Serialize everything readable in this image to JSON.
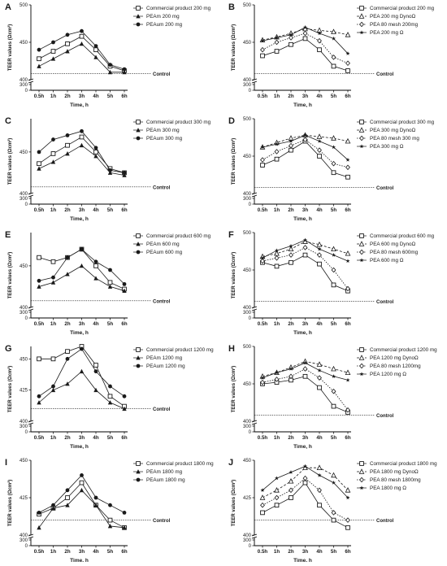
{
  "colors": {
    "ink": "#1a1a1a",
    "axis": "#000000"
  },
  "chart_data": [
    {
      "id": "A",
      "panel_label": "A",
      "type": "line",
      "ylabel": "TEER values (Ωcm²)",
      "xlabel": "Time, h",
      "control_label": "Control",
      "categories": [
        "0.5h",
        "1h",
        "2h",
        "3h",
        "4h",
        "5h",
        "6h"
      ],
      "yticks": [
        500,
        450,
        400,
        300,
        0
      ],
      "control": 408,
      "series": [
        {
          "name": "Commercial product 200 mg",
          "marker": "open-square",
          "values": [
            428,
            438,
            448,
            458,
            440,
            418,
            412
          ]
        },
        {
          "name": "PEAm 200 mg",
          "marker": "filled-triangle",
          "values": [
            418,
            428,
            438,
            448,
            430,
            410,
            410
          ]
        },
        {
          "name": "PEAum 200 mg",
          "marker": "filled-circle",
          "values": [
            440,
            450,
            460,
            465,
            445,
            420,
            414
          ]
        }
      ]
    },
    {
      "id": "B",
      "panel_label": "B",
      "type": "line",
      "ylabel": "TEER values (Ωcm²)",
      "xlabel": "Time, h",
      "control_label": "Control",
      "categories": [
        "0.5h",
        "1h",
        "2h",
        "3h",
        "4h",
        "5h",
        "6h"
      ],
      "yticks": [
        500,
        450,
        400,
        300,
        0
      ],
      "control": 408,
      "series": [
        {
          "name": "Commercial product 200 mg",
          "marker": "open-square",
          "values": [
            432,
            438,
            447,
            455,
            440,
            418,
            412
          ]
        },
        {
          "name": "PEA 200 mg DynoΩ",
          "marker": "open-triangle",
          "values": [
            453,
            457,
            462,
            468,
            466,
            464,
            460
          ]
        },
        {
          "name": "PEA 80 mesh 200mg",
          "marker": "open-diamond",
          "values": [
            440,
            450,
            456,
            462,
            452,
            430,
            422
          ]
        },
        {
          "name": "PEA 200 mg Ω",
          "marker": "star",
          "values": [
            452,
            456,
            460,
            470,
            462,
            455,
            435
          ]
        }
      ]
    },
    {
      "id": "C",
      "panel_label": "C",
      "type": "line",
      "ylabel": "TEER values (Ωcm²)",
      "xlabel": "Time, h",
      "control_label": "Control",
      "categories": [
        "0.5h",
        "1h",
        "2h",
        "3h",
        "4h",
        "5h",
        "6h"
      ],
      "yticks": [
        450,
        400,
        300,
        0
      ],
      "control": 408,
      "series": [
        {
          "name": "Commercial product 300 mg",
          "marker": "open-square",
          "values": [
            436,
            448,
            458,
            468,
            450,
            430,
            425
          ]
        },
        {
          "name": "PEAm 300 mg",
          "marker": "filled-triangle",
          "values": [
            430,
            438,
            448,
            458,
            445,
            425,
            422
          ]
        },
        {
          "name": "PEAum 300 mg",
          "marker": "filled-circle",
          "values": [
            450,
            465,
            470,
            475,
            455,
            428,
            425
          ]
        }
      ]
    },
    {
      "id": "D",
      "panel_label": "D",
      "type": "line",
      "ylabel": "TEER values (Ωcm²)",
      "xlabel": "Time, h",
      "control_label": "Control",
      "categories": [
        "0.5h",
        "1h",
        "2h",
        "3h",
        "4h",
        "5h",
        "6h"
      ],
      "yticks": [
        500,
        450,
        400,
        300,
        0
      ],
      "control": 408,
      "series": [
        {
          "name": "Commercial product 300 mg",
          "marker": "open-square",
          "values": [
            438,
            446,
            458,
            470,
            450,
            428,
            422
          ]
        },
        {
          "name": "PEA 300 mg DynoΩ",
          "marker": "open-triangle",
          "values": [
            462,
            468,
            474,
            478,
            476,
            474,
            470
          ]
        },
        {
          "name": "PEA 80 mesh 300 mg",
          "marker": "open-diamond",
          "values": [
            445,
            456,
            464,
            472,
            458,
            440,
            435
          ]
        },
        {
          "name": "PEA 300 mg Ω",
          "marker": "star",
          "values": [
            462,
            466,
            470,
            478,
            470,
            462,
            445
          ]
        }
      ]
    },
    {
      "id": "E",
      "panel_label": "E",
      "type": "line",
      "ylabel": "TEER values (Ωcm²)",
      "xlabel": "Time, h",
      "control_label": "Control",
      "categories": [
        "0.5h",
        "1h",
        "2h",
        "3h",
        "4h",
        "5h",
        "6h"
      ],
      "yticks": [
        450,
        400,
        300,
        0
      ],
      "control": 408,
      "series": [
        {
          "name": "Commercial product 600 mg",
          "marker": "open-square",
          "values": [
            460,
            455,
            460,
            470,
            450,
            430,
            422
          ]
        },
        {
          "name": "PEAm 600 mg",
          "marker": "filled-triangle",
          "values": [
            425,
            430,
            440,
            450,
            435,
            425,
            420
          ]
        },
        {
          "name": "PEAum 600 mg",
          "marker": "filled-circle",
          "values": [
            432,
            436,
            460,
            470,
            455,
            445,
            428
          ]
        }
      ]
    },
    {
      "id": "F",
      "panel_label": "F",
      "type": "line",
      "ylabel": "TEER values (Ωcm²)",
      "xlabel": "Time, h",
      "control_label": "Control",
      "categories": [
        "0.5h",
        "1h",
        "2h",
        "3h",
        "4h",
        "5h",
        "6h"
      ],
      "yticks": [
        500,
        450,
        400,
        300,
        0
      ],
      "control": 408,
      "series": [
        {
          "name": "Commercial product 600 mg",
          "marker": "open-square",
          "values": [
            460,
            455,
            460,
            470,
            458,
            430,
            422
          ]
        },
        {
          "name": "PEA 600 mg DynoΩ",
          "marker": "open-triangle",
          "values": [
            468,
            472,
            478,
            488,
            484,
            478,
            472
          ]
        },
        {
          "name": "PEA 80 mesh 600mg",
          "marker": "open-diamond",
          "values": [
            462,
            466,
            470,
            480,
            470,
            450,
            425
          ]
        },
        {
          "name": "PEA 600 mg Ω",
          "marker": "star",
          "values": [
            466,
            476,
            482,
            490,
            478,
            470,
            462
          ]
        }
      ]
    },
    {
      "id": "G",
      "panel_label": "G",
      "type": "line",
      "ylabel": "TEER values (Ωcm²)",
      "xlabel": "Time, h",
      "control_label": "Control",
      "categories": [
        "0.5h",
        "1h",
        "2h",
        "3h",
        "4h",
        "5h",
        "6h"
      ],
      "yticks": [
        450,
        425,
        400,
        300,
        0
      ],
      "control": 410,
      "series": [
        {
          "name": "Commercial product 1200 mg",
          "marker": "open-square",
          "values": [
            450,
            450,
            456,
            460,
            445,
            420,
            412
          ]
        },
        {
          "name": "PEAm 1200 mg",
          "marker": "filled-triangle",
          "values": [
            415,
            425,
            430,
            440,
            425,
            415,
            410
          ]
        },
        {
          "name": "PEAum 1200 mg",
          "marker": "filled-circle",
          "values": [
            420,
            428,
            450,
            458,
            440,
            428,
            420
          ]
        }
      ]
    },
    {
      "id": "H",
      "panel_label": "H",
      "type": "line",
      "ylabel": "TEER values (Ωcm²)",
      "xlabel": "Time, h",
      "control_label": "Control",
      "categories": [
        "0.5h",
        "1h",
        "2h",
        "3h",
        "4h",
        "5h",
        "6h"
      ],
      "yticks": [
        500,
        450,
        400,
        300,
        0
      ],
      "control": 408,
      "series": [
        {
          "name": "Commercial product 1200 mg",
          "marker": "open-square",
          "values": [
            450,
            452,
            455,
            460,
            445,
            420,
            412
          ]
        },
        {
          "name": "PEA 1200 mg DynoΩ",
          "marker": "open-triangle",
          "values": [
            460,
            465,
            472,
            480,
            476,
            470,
            465
          ]
        },
        {
          "name": "PEA 80 mesh 1200mg",
          "marker": "open-diamond",
          "values": [
            452,
            456,
            460,
            470,
            458,
            440,
            415
          ]
        },
        {
          "name": "PEA 1200 mg Ω",
          "marker": "star",
          "values": [
            458,
            465,
            470,
            478,
            468,
            460,
            455
          ]
        }
      ]
    },
    {
      "id": "I",
      "panel_label": "I",
      "type": "line",
      "ylabel": "TEER values (Ωcm²)",
      "xlabel": "Time, h",
      "control_label": "Control",
      "categories": [
        "0.5h",
        "1h",
        "2h",
        "3h",
        "4h",
        "5h",
        "6h"
      ],
      "yticks": [
        450,
        425,
        400,
        300,
        0
      ],
      "control": 410,
      "series": [
        {
          "name": "Commercial product 1800 mg",
          "marker": "open-square",
          "values": [
            414,
            418,
            425,
            435,
            420,
            410,
            405
          ]
        },
        {
          "name": "PEAm 1800 mg",
          "marker": "filled-triangle",
          "values": [
            405,
            418,
            420,
            430,
            420,
            406,
            405
          ]
        },
        {
          "name": "PEAum 1800 mg",
          "marker": "filled-circle",
          "values": [
            415,
            420,
            430,
            440,
            425,
            420,
            415
          ]
        }
      ]
    },
    {
      "id": "J",
      "panel_label": "J",
      "type": "line",
      "ylabel": "TEER values (Ωcm²)",
      "xlabel": "Time, h",
      "control_label": "Control",
      "categories": [
        "0.5h",
        "1h",
        "2h",
        "3h",
        "4h",
        "5h",
        "6h"
      ],
      "yticks": [
        450,
        425,
        400,
        300,
        0
      ],
      "control": 410,
      "series": [
        {
          "name": "Commercial product 1800 mg",
          "marker": "open-square",
          "values": [
            415,
            420,
            425,
            435,
            420,
            410,
            405
          ]
        },
        {
          "name": "PEA 1800 mg DynoΩ",
          "marker": "open-triangle",
          "values": [
            425,
            430,
            436,
            445,
            445,
            440,
            430
          ]
        },
        {
          "name": "PEA 80 mesh 1800mg",
          "marker": "open-diamond",
          "values": [
            420,
            425,
            430,
            438,
            430,
            415,
            410
          ]
        },
        {
          "name": "PEA 1800 mg Ω",
          "marker": "star",
          "values": [
            430,
            438,
            442,
            446,
            440,
            435,
            425
          ]
        }
      ]
    }
  ]
}
